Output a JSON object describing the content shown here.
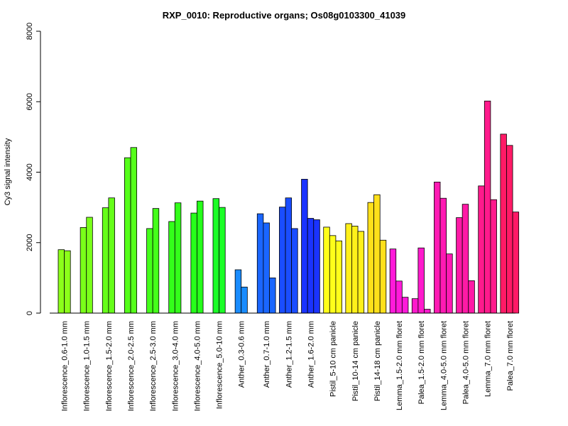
{
  "chart_data": {
    "type": "bar",
    "title": "RXP_0010: Reproductive organs; Os08g0103300_41039",
    "xlabel": "",
    "ylabel": "Cy3 signal intensity",
    "ylim": [
      0,
      8000
    ],
    "yticks": [
      0,
      2000,
      4000,
      6000,
      8000
    ],
    "grid": false,
    "groups": [
      {
        "label": "Inflorescence_0.6-1.0 mm",
        "color": "#8cff1a",
        "values": [
          1800,
          1770
        ]
      },
      {
        "label": "Inflorescence_1.0-1.5 mm",
        "color": "#7aff1a",
        "values": [
          2430,
          2720
        ]
      },
      {
        "label": "Inflorescence_1.5-2.0 mm",
        "color": "#66ff1a",
        "values": [
          2990,
          3270
        ]
      },
      {
        "label": "Inflorescence_2.0-2.5 mm",
        "color": "#55ff1a",
        "values": [
          4410,
          4700
        ]
      },
      {
        "label": "Inflorescence_2.5-3.0 mm",
        "color": "#44ff1a",
        "values": [
          2400,
          2970
        ]
      },
      {
        "label": "Inflorescence_3.0-4.0 mm",
        "color": "#33ff1a",
        "values": [
          2600,
          3130
        ]
      },
      {
        "label": "Inflorescence_4.0-5.0 mm",
        "color": "#26ff1a",
        "values": [
          2840,
          3180
        ]
      },
      {
        "label": "Inflorescence_5.0-10 mm",
        "color": "#1aff26",
        "values": [
          3250,
          3000
        ]
      },
      {
        "label": "Anther_0.3-0.6 mm",
        "color": "#1a8cff",
        "values": [
          1230,
          740
        ]
      },
      {
        "label": "Anther_0.7-1.0 mm",
        "color": "#1a66ff",
        "values": [
          2820,
          2560,
          1000
        ]
      },
      {
        "label": "Anther_1.2-1.5 mm",
        "color": "#1a4dff",
        "values": [
          3010,
          3270,
          2400
        ]
      },
      {
        "label": "Anther_1.6-2.0 mm",
        "color": "#1a33ff",
        "values": [
          3800,
          2690,
          2650
        ]
      },
      {
        "label": "Pistil_5-10 cm panicle",
        "color": "#ffff1a",
        "values": [
          2440,
          2200,
          2050
        ]
      },
      {
        "label": "Pistil_10-14 cm panicle",
        "color": "#fff01a",
        "values": [
          2540,
          2470,
          2320
        ]
      },
      {
        "label": "Pistil_14-18 cm panicle",
        "color": "#ffe01a",
        "values": [
          3140,
          3360,
          2070
        ]
      },
      {
        "label": "Lemma_1.5-2.0 mm floret",
        "color": "#ff1ad9",
        "values": [
          1820,
          910,
          450
        ]
      },
      {
        "label": "Palea_1.5-2.0 mm floret",
        "color": "#ff1acc",
        "values": [
          410,
          1850,
          110
        ]
      },
      {
        "label": "Lemma_4.0-5.0 mm floret",
        "color": "#ff1ab3",
        "values": [
          3720,
          3260,
          1680
        ]
      },
      {
        "label": "Palea_4.0-5.0 mm floret",
        "color": "#ff1aa6",
        "values": [
          2710,
          3090,
          920
        ]
      },
      {
        "label": "Lemma_7.0 mm floret",
        "color": "#ff1a8c",
        "values": [
          3610,
          6020,
          3220
        ]
      },
      {
        "label": "Palea_7.0 mm floret",
        "color": "#ff1a66",
        "values": [
          5080,
          4760,
          2870
        ]
      }
    ]
  }
}
